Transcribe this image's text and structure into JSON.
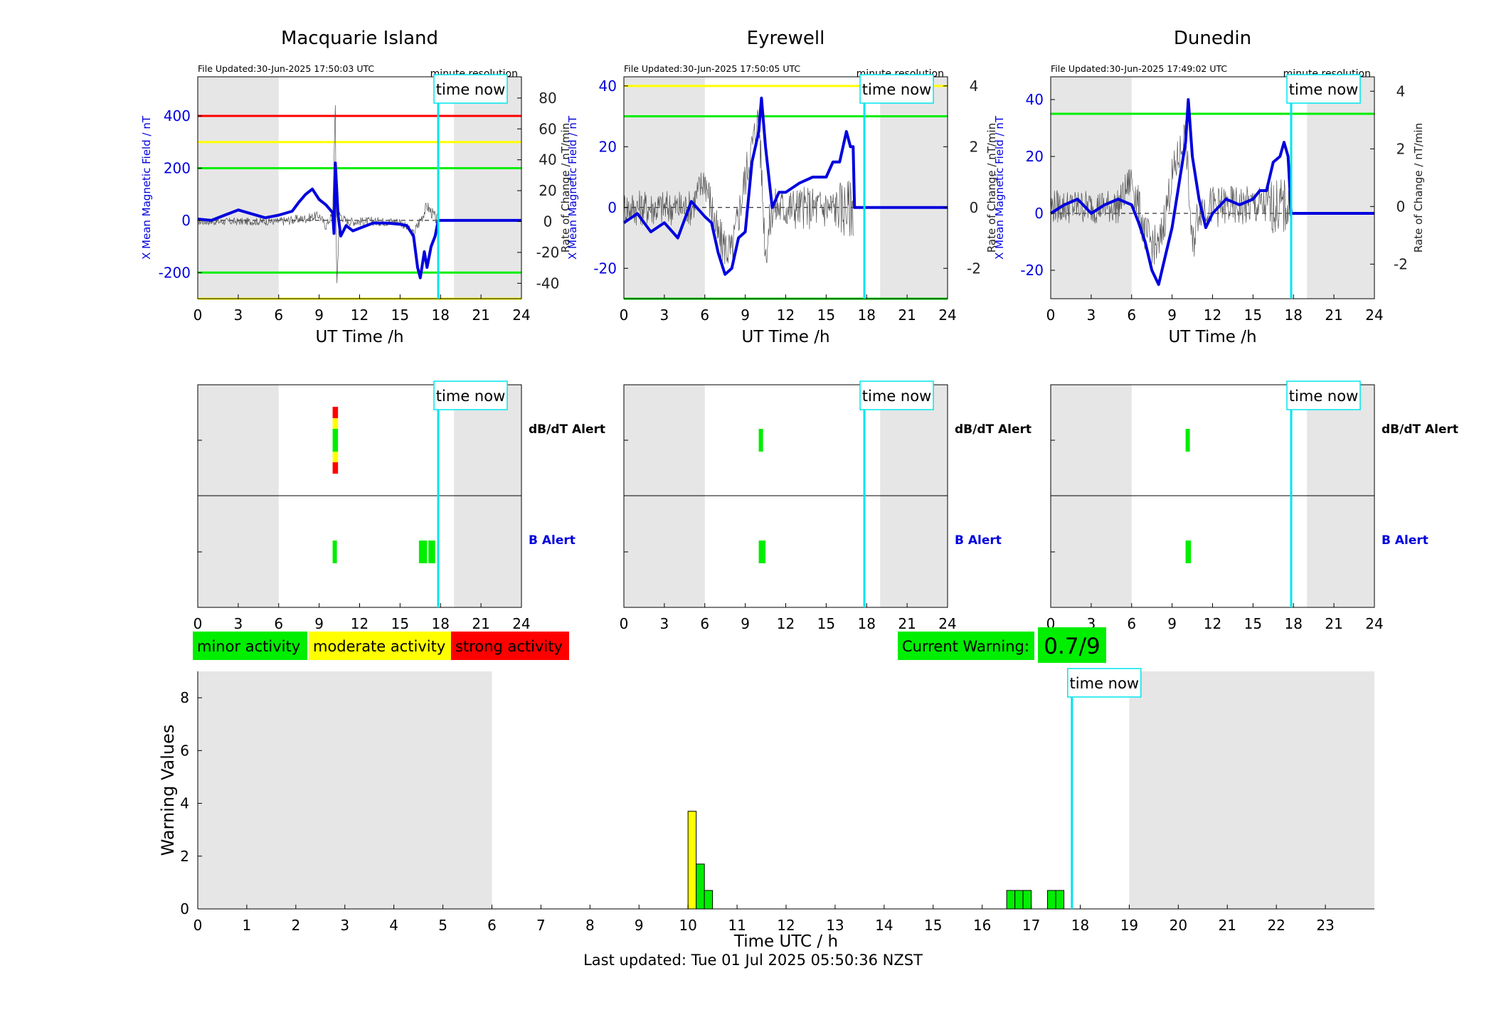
{
  "colors": {
    "field_line": "#0000dd",
    "derivative_line": "#555555",
    "time_now": "#00e5ee",
    "night_shade": "#e6e6e6",
    "minor": "#00ee00",
    "moderate": "#ffff00",
    "strong": "#ff0000",
    "right_axis_text": "#222222"
  },
  "common": {
    "time_now_label": "time now",
    "time_now_hour": 17.83,
    "minute_resolution_label": "minute resolution",
    "hour_axis_label": "UT Time /h",
    "left_axis_label": "X Mean Magnetic Field / nT",
    "right_axis_label": "Rate of Change / nT/min",
    "hour_ticks": [
      "0",
      "3",
      "6",
      "9",
      "12",
      "15",
      "18",
      "21",
      "24"
    ],
    "alert_row_labels": [
      "dB/dT Alert",
      "B Alert"
    ],
    "night_ranges": [
      [
        0,
        6
      ],
      [
        19,
        24
      ]
    ]
  },
  "chart_data": [
    {
      "type": "line",
      "title": "Macquarie Island",
      "file_updated": "File Updated:30-Jun-2025 17:50:03 UTC",
      "xlim": [
        0,
        24
      ],
      "ylim_left": [
        -300,
        550
      ],
      "ylim_right": [
        -50,
        93.75
      ],
      "left_ticks": [
        -200,
        0,
        200,
        400
      ],
      "right_ticks": [
        -40,
        -20,
        0,
        20,
        40,
        60,
        80
      ],
      "thresholds": [
        {
          "value": 400,
          "color": "red"
        },
        {
          "value": 300,
          "color": "yellow"
        },
        {
          "value": 200,
          "color": "green"
        },
        {
          "value": -200,
          "color": "green"
        },
        {
          "value": -300,
          "color": "yellow"
        }
      ],
      "series": [
        {
          "axis": "left",
          "style": "thick-blue",
          "points": [
            [
              0,
              5
            ],
            [
              1,
              0
            ],
            [
              2,
              20
            ],
            [
              3,
              40
            ],
            [
              4,
              25
            ],
            [
              5,
              10
            ],
            [
              6,
              20
            ],
            [
              7,
              35
            ],
            [
              7.5,
              70
            ],
            [
              8,
              100
            ],
            [
              8.5,
              120
            ],
            [
              9,
              80
            ],
            [
              9.5,
              60
            ],
            [
              10,
              30
            ],
            [
              10.1,
              -50
            ],
            [
              10.2,
              220
            ],
            [
              10.4,
              20
            ],
            [
              10.6,
              -60
            ],
            [
              11,
              -20
            ],
            [
              11.5,
              -40
            ],
            [
              12,
              -30
            ],
            [
              13,
              -10
            ],
            [
              14,
              -10
            ],
            [
              15,
              -15
            ],
            [
              15.5,
              -20
            ],
            [
              16,
              -60
            ],
            [
              16.3,
              -180
            ],
            [
              16.5,
              -220
            ],
            [
              16.8,
              -120
            ],
            [
              17,
              -180
            ],
            [
              17.3,
              -100
            ],
            [
              17.6,
              -60
            ],
            [
              17.83,
              0
            ],
            [
              24,
              0
            ]
          ]
        },
        {
          "axis": "right",
          "style": "thin-grey",
          "noise": 2.5,
          "points": [
            [
              0,
              0
            ],
            [
              6,
              0
            ],
            [
              8,
              2
            ],
            [
              9,
              4
            ],
            [
              9.5,
              -3
            ],
            [
              10,
              5
            ],
            [
              10.2,
              75
            ],
            [
              10.3,
              -45
            ],
            [
              10.5,
              5
            ],
            [
              11,
              0
            ],
            [
              15,
              0
            ],
            [
              16,
              -8
            ],
            [
              17,
              10
            ],
            [
              17.8,
              0
            ]
          ]
        }
      ],
      "alerts": {
        "dbdt": [
          {
            "start": 10.0,
            "end": 10.4,
            "levels": [
              "strong",
              "moderate",
              "minor",
              "moderate",
              "strong"
            ]
          }
        ],
        "b": [
          {
            "start": 10.0,
            "end": 10.3,
            "level": "minor"
          },
          {
            "start": 16.4,
            "end": 17.0,
            "level": "minor"
          },
          {
            "start": 17.1,
            "end": 17.6,
            "level": "minor"
          }
        ]
      }
    },
    {
      "type": "line",
      "title": "Eyrewell",
      "file_updated": "File Updated:30-Jun-2025 17:50:05 UTC",
      "xlim": [
        0,
        24
      ],
      "ylim_left": [
        -30,
        43
      ],
      "ylim_right": [
        -3.0,
        4.3
      ],
      "left_ticks": [
        -20,
        0,
        20,
        40
      ],
      "right_ticks": [
        -2,
        0,
        2,
        4
      ],
      "thresholds": [
        {
          "value": 40,
          "color": "yellow"
        },
        {
          "value": 30,
          "color": "green"
        },
        {
          "value": -30,
          "color": "green"
        }
      ],
      "series": [
        {
          "axis": "left",
          "style": "thick-blue",
          "points": [
            [
              0,
              -5
            ],
            [
              1,
              -2
            ],
            [
              2,
              -8
            ],
            [
              3,
              -5
            ],
            [
              4,
              -10
            ],
            [
              5,
              2
            ],
            [
              6,
              -3
            ],
            [
              6.5,
              -5
            ],
            [
              7,
              -15
            ],
            [
              7.5,
              -22
            ],
            [
              8,
              -20
            ],
            [
              8.5,
              -10
            ],
            [
              9,
              -8
            ],
            [
              9.5,
              15
            ],
            [
              10,
              25
            ],
            [
              10.2,
              36
            ],
            [
              10.5,
              20
            ],
            [
              11,
              0
            ],
            [
              11.5,
              5
            ],
            [
              12,
              5
            ],
            [
              13,
              8
            ],
            [
              14,
              10
            ],
            [
              15,
              10
            ],
            [
              15.5,
              15
            ],
            [
              16,
              15
            ],
            [
              16.5,
              25
            ],
            [
              16.8,
              20
            ],
            [
              17,
              20
            ],
            [
              17.1,
              0
            ],
            [
              24,
              0
            ]
          ]
        },
        {
          "axis": "right",
          "style": "thin-grey",
          "noise": 0.6,
          "points": [
            [
              0,
              0
            ],
            [
              5,
              0
            ],
            [
              6,
              1
            ],
            [
              7,
              -1
            ],
            [
              8,
              -1.5
            ],
            [
              9,
              1
            ],
            [
              10,
              3
            ],
            [
              10.5,
              -1.5
            ],
            [
              11,
              0
            ],
            [
              17,
              0
            ]
          ]
        }
      ],
      "alerts": {
        "dbdt": [
          {
            "start": 10.0,
            "end": 10.3,
            "levels": [
              "minor"
            ]
          }
        ],
        "b": [
          {
            "start": 10.0,
            "end": 10.5,
            "level": "minor"
          }
        ]
      }
    },
    {
      "type": "line",
      "title": "Dunedin",
      "file_updated": "File Updated:30-Jun-2025 17:49:02 UTC",
      "xlim": [
        0,
        24
      ],
      "ylim_left": [
        -30,
        48
      ],
      "ylim_right": [
        -3.2,
        4.5
      ],
      "left_ticks": [
        -20,
        0,
        20,
        40
      ],
      "right_ticks": [
        -2,
        0,
        2,
        4
      ],
      "thresholds": [
        {
          "value": 35,
          "color": "green"
        }
      ],
      "series": [
        {
          "axis": "left",
          "style": "thick-blue",
          "points": [
            [
              0,
              0
            ],
            [
              1,
              3
            ],
            [
              2,
              5
            ],
            [
              3,
              0
            ],
            [
              4,
              3
            ],
            [
              5,
              5
            ],
            [
              6,
              3
            ],
            [
              6.5,
              -3
            ],
            [
              7,
              -10
            ],
            [
              7.5,
              -20
            ],
            [
              8,
              -25
            ],
            [
              8.5,
              -15
            ],
            [
              9,
              -5
            ],
            [
              9.5,
              10
            ],
            [
              10,
              25
            ],
            [
              10.2,
              40
            ],
            [
              10.5,
              20
            ],
            [
              11,
              5
            ],
            [
              11.5,
              -5
            ],
            [
              12,
              0
            ],
            [
              13,
              5
            ],
            [
              14,
              3
            ],
            [
              15,
              5
            ],
            [
              15.5,
              8
            ],
            [
              16,
              8
            ],
            [
              16.5,
              18
            ],
            [
              17,
              20
            ],
            [
              17.3,
              25
            ],
            [
              17.6,
              20
            ],
            [
              17.83,
              0
            ],
            [
              24,
              0
            ]
          ]
        },
        {
          "axis": "right",
          "style": "thin-grey",
          "noise": 0.6,
          "points": [
            [
              0,
              0
            ],
            [
              5,
              0
            ],
            [
              6,
              1
            ],
            [
              7,
              -1
            ],
            [
              8,
              -1.5
            ],
            [
              9,
              1
            ],
            [
              10,
              2.5
            ],
            [
              10.5,
              -1.5
            ],
            [
              11,
              0
            ],
            [
              17.8,
              0
            ]
          ]
        }
      ],
      "alerts": {
        "dbdt": [
          {
            "start": 10.0,
            "end": 10.3,
            "levels": [
              "minor"
            ]
          }
        ],
        "b": [
          {
            "start": 10.0,
            "end": 10.4,
            "level": "minor"
          }
        ]
      }
    },
    {
      "type": "bar",
      "ylabel": "Warning Values",
      "xlabel": "Time UTC / h",
      "xlim": [
        0,
        24
      ],
      "ylim": [
        0,
        9
      ],
      "y_ticks": [
        0,
        2,
        4,
        6,
        8
      ],
      "x_ticks": [
        "0",
        "1",
        "2",
        "3",
        "4",
        "5",
        "6",
        "7",
        "8",
        "9",
        "10",
        "11",
        "12",
        "13",
        "14",
        "15",
        "16",
        "17",
        "18",
        "19",
        "20",
        "21",
        "22",
        "23"
      ],
      "bar_width": 0.167,
      "bars": [
        {
          "x": 10.0,
          "value": 3.7,
          "level": "moderate"
        },
        {
          "x": 10.167,
          "value": 1.7,
          "level": "minor"
        },
        {
          "x": 10.333,
          "value": 0.7,
          "level": "minor"
        },
        {
          "x": 16.5,
          "value": 0.7,
          "level": "minor"
        },
        {
          "x": 16.667,
          "value": 0.7,
          "level": "minor"
        },
        {
          "x": 16.833,
          "value": 0.7,
          "level": "minor"
        },
        {
          "x": 17.333,
          "value": 0.7,
          "level": "minor"
        },
        {
          "x": 17.5,
          "value": 0.7,
          "level": "minor"
        }
      ]
    }
  ],
  "legend": {
    "minor": "minor activity",
    "moderate": "moderate activity",
    "strong": "strong activity"
  },
  "current_warning": {
    "label": "Current Warning:",
    "value": "0.7/9"
  },
  "footer": {
    "last_updated": "Last updated: Tue 01 Jul 2025 05:50:36 NZST"
  }
}
